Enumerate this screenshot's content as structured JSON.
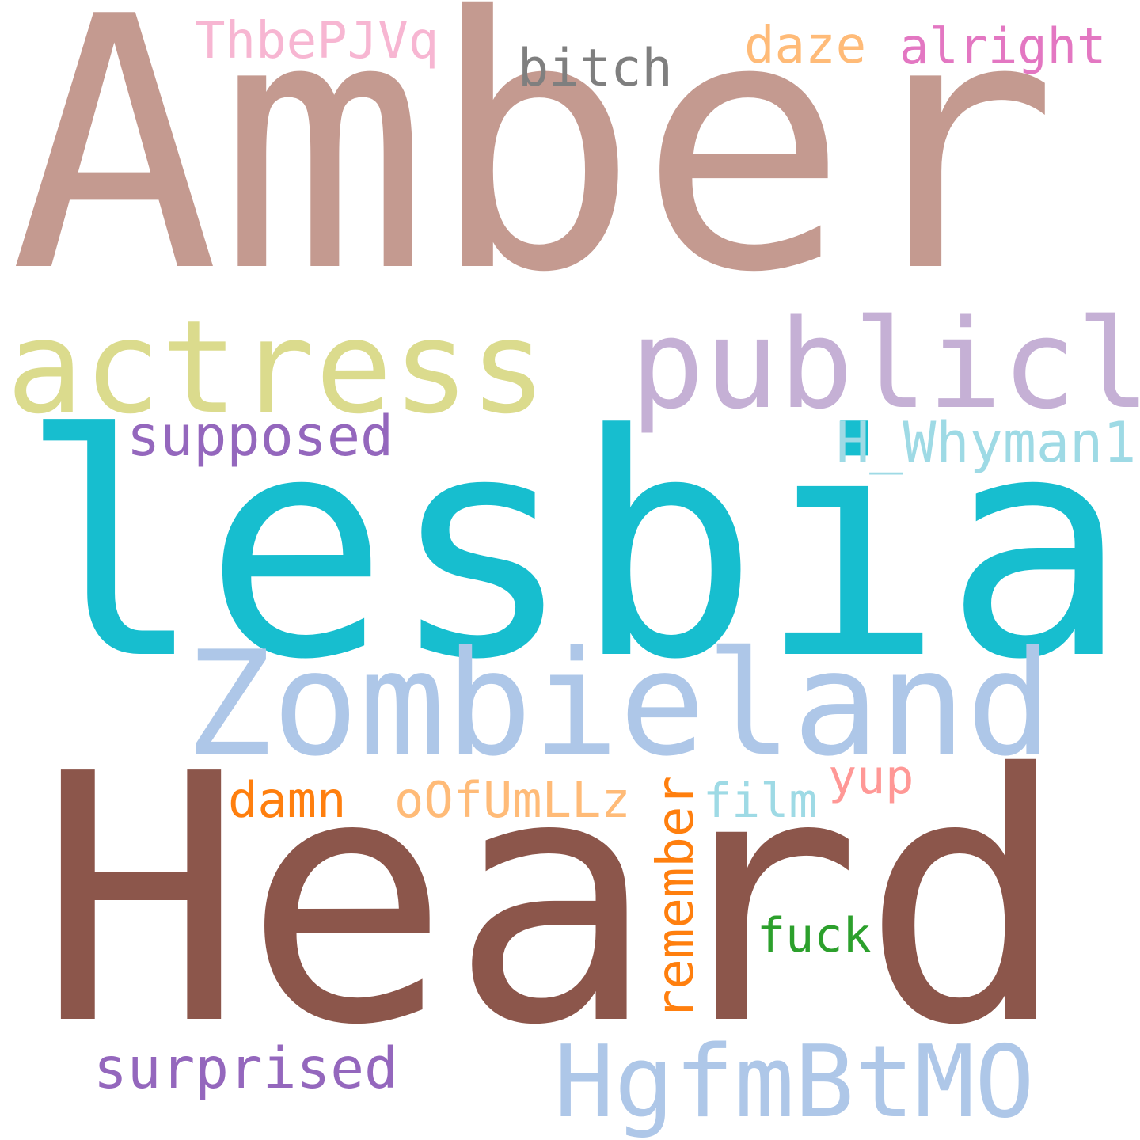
{
  "words": [
    {
      "text": "Amber",
      "color": "#c49a90"
    },
    {
      "text": "lesbian",
      "color": "#17becf"
    },
    {
      "text": "Heard",
      "color": "#8c564b"
    },
    {
      "text": "Zombieland",
      "color": "#aec7e8"
    },
    {
      "text": "actress",
      "color": "#dbdb8d"
    },
    {
      "text": "publicly",
      "color": "#c5b0d5"
    },
    {
      "text": "HgfmBtMO",
      "color": "#aec7e8"
    },
    {
      "text": "supposed",
      "color": "#9467bd"
    },
    {
      "text": "H_Whyman1",
      "color": "#9edae5"
    },
    {
      "text": "surprised",
      "color": "#9467bd"
    },
    {
      "text": "remember",
      "color": "#ff7f0e"
    },
    {
      "text": "oOfUmLLz",
      "color": "#ffbb78"
    },
    {
      "text": "ThbePJVq",
      "color": "#f7b6d2"
    },
    {
      "text": "alright",
      "color": "#e377c2"
    },
    {
      "text": "bitch",
      "color": "#7f7f7f"
    },
    {
      "text": "daze",
      "color": "#ffbb78"
    },
    {
      "text": "damn",
      "color": "#ff7f0e"
    },
    {
      "text": "film",
      "color": "#9edae5"
    },
    {
      "text": "yup",
      "color": "#ff9896"
    },
    {
      "text": "fuck",
      "color": "#2ca02c"
    }
  ]
}
